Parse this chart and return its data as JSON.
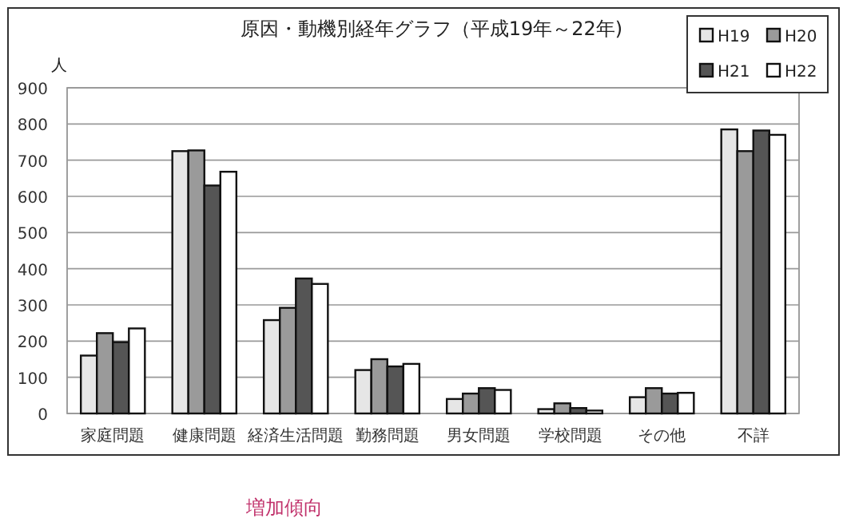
{
  "chart_data": {
    "type": "bar",
    "title": "原因・動機別経年グラフ（平成19年～22年)",
    "ylabel": "人",
    "categories": [
      "家庭問題",
      "健康問題",
      "経済生活問題",
      "勤務問題",
      "男女問題",
      "学校問題",
      "その他",
      "不詳"
    ],
    "series": [
      {
        "name": "H19",
        "color": "#e6e6e6",
        "values": [
          160,
          725,
          258,
          120,
          40,
          12,
          45,
          785
        ]
      },
      {
        "name": "H20",
        "color": "#9a9a9a",
        "values": [
          222,
          727,
          292,
          150,
          55,
          28,
          70,
          725
        ]
      },
      {
        "name": "H21",
        "color": "#555555",
        "values": [
          197,
          630,
          373,
          130,
          70,
          15,
          55,
          782
        ]
      },
      {
        "name": "H22",
        "color": "#ffffff",
        "values": [
          235,
          668,
          358,
          137,
          65,
          8,
          57,
          770
        ]
      }
    ],
    "ylim": [
      0,
      900
    ],
    "yticks": [
      0,
      100,
      200,
      300,
      400,
      500,
      600,
      700,
      800,
      900
    ],
    "grid": "y",
    "legend": "top right",
    "annotations": [
      "増加傾向"
    ]
  }
}
